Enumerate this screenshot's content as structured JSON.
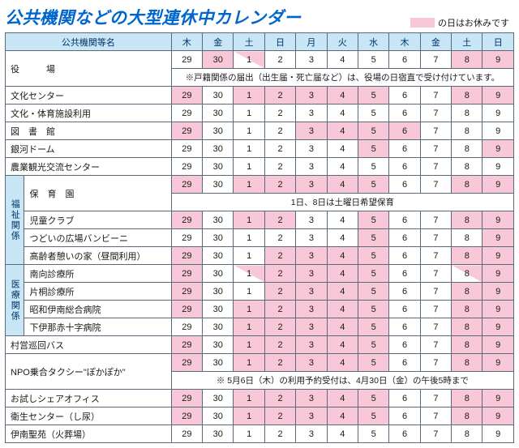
{
  "title": "公共機関などの大型連休中カレンダー",
  "legend_text": "の日はお休みです",
  "colors": {
    "holiday_bg": "#f8c8d8",
    "header_bg": "#c8e6f5",
    "title_color": "#0066cc",
    "border_color": "#5a6a7a"
  },
  "header_name": "公共機関等名",
  "days_of_week": [
    "木",
    "金",
    "土",
    "日",
    "月",
    "火",
    "水",
    "木",
    "金",
    "土",
    "日"
  ],
  "dates": [
    "29",
    "30",
    "1",
    "2",
    "3",
    "4",
    "5",
    "6",
    "7",
    "8",
    "9"
  ],
  "note_yakuba": "※戸籍関係の届出（出生届・死亡届など）は、役場の日宿直で受け付けています。",
  "note_hoiku": "1日、8日は土曜日希望保育",
  "note_taxi": "※ 5月6日（木）の利用予約受付は、4月30日（金）の午後5時まで",
  "vcat_fukushi": "福祉関係",
  "vcat_iryo": "医療関係",
  "rows": {
    "yakuba": {
      "name": "役　　　場",
      "off": [
        0,
        1,
        2,
        3,
        4,
        5,
        6,
        0,
        0,
        1,
        1
      ]
    },
    "bunka": {
      "name": "文化センター",
      "off": [
        1,
        0,
        1,
        1,
        1,
        1,
        1,
        0,
        0,
        1,
        1
      ]
    },
    "shisetsu": {
      "name": "文化・体育施設利用",
      "off": [
        0,
        0,
        0,
        0,
        0,
        0,
        0,
        0,
        0,
        0,
        0
      ]
    },
    "tosho": {
      "name": "図　書　館",
      "off": [
        1,
        0,
        0,
        0,
        1,
        1,
        1,
        1,
        0,
        0,
        0
      ]
    },
    "ginga": {
      "name": "銀河ドーム",
      "off": [
        0,
        0,
        0,
        0,
        0,
        0,
        1,
        0,
        0,
        0,
        1
      ]
    },
    "nougyo": {
      "name": "農業観光交流センター",
      "off": [
        0,
        0,
        0,
        0,
        0,
        0,
        0,
        0,
        0,
        0,
        0
      ]
    },
    "hoiku": {
      "name": "保　育　園",
      "off": [
        1,
        0,
        1,
        1,
        1,
        1,
        1,
        0,
        0,
        1,
        1
      ]
    },
    "jidou": {
      "name": "児童クラブ",
      "off": [
        1,
        0,
        1,
        1,
        0,
        0,
        1,
        0,
        0,
        1,
        1
      ]
    },
    "tsudoi": {
      "name": "つどいの広場バンビーニ",
      "off": [
        0,
        0,
        0,
        0,
        0,
        0,
        1,
        0,
        0,
        0,
        1
      ]
    },
    "kourei": {
      "name": "高齢者憩いの家（昼間利用）",
      "off": [
        1,
        0,
        0,
        1,
        1,
        1,
        1,
        0,
        0,
        1,
        1
      ]
    },
    "minami": {
      "name": "南向診療所",
      "off": [
        1,
        0,
        2,
        1,
        1,
        1,
        1,
        0,
        0,
        2,
        1
      ]
    },
    "katagiri": {
      "name": "片桐診療所",
      "off": [
        1,
        0,
        0,
        1,
        1,
        1,
        1,
        0,
        0,
        1,
        1
      ]
    },
    "showa": {
      "name": "昭和伊南総合病院",
      "off": [
        1,
        0,
        1,
        1,
        1,
        1,
        1,
        0,
        0,
        1,
        1
      ]
    },
    "sekijuji": {
      "name": "下伊那赤十字病院",
      "off": [
        0,
        0,
        1,
        1,
        1,
        1,
        1,
        0,
        0,
        1,
        1
      ]
    },
    "bus": {
      "name": "村営巡回バス",
      "off": [
        1,
        0,
        1,
        1,
        1,
        1,
        1,
        0,
        0,
        1,
        1
      ]
    },
    "taxi": {
      "name": "NPO乗合タクシー\"ぽかぽか\"",
      "off": [
        1,
        0,
        1,
        1,
        1,
        1,
        1,
        0,
        0,
        1,
        1
      ]
    },
    "share": {
      "name": "お試しシェアオフィス",
      "off": [
        1,
        0,
        1,
        1,
        1,
        1,
        1,
        0,
        0,
        1,
        1
      ]
    },
    "eisei": {
      "name": "衛生センター（し尿）",
      "off": [
        1,
        0,
        1,
        1,
        1,
        1,
        1,
        0,
        0,
        1,
        1
      ]
    },
    "inan": {
      "name": "伊南聖苑（火葬場）",
      "off": [
        0,
        0,
        0,
        0,
        0,
        0,
        0,
        0,
        0,
        0,
        0
      ]
    }
  }
}
